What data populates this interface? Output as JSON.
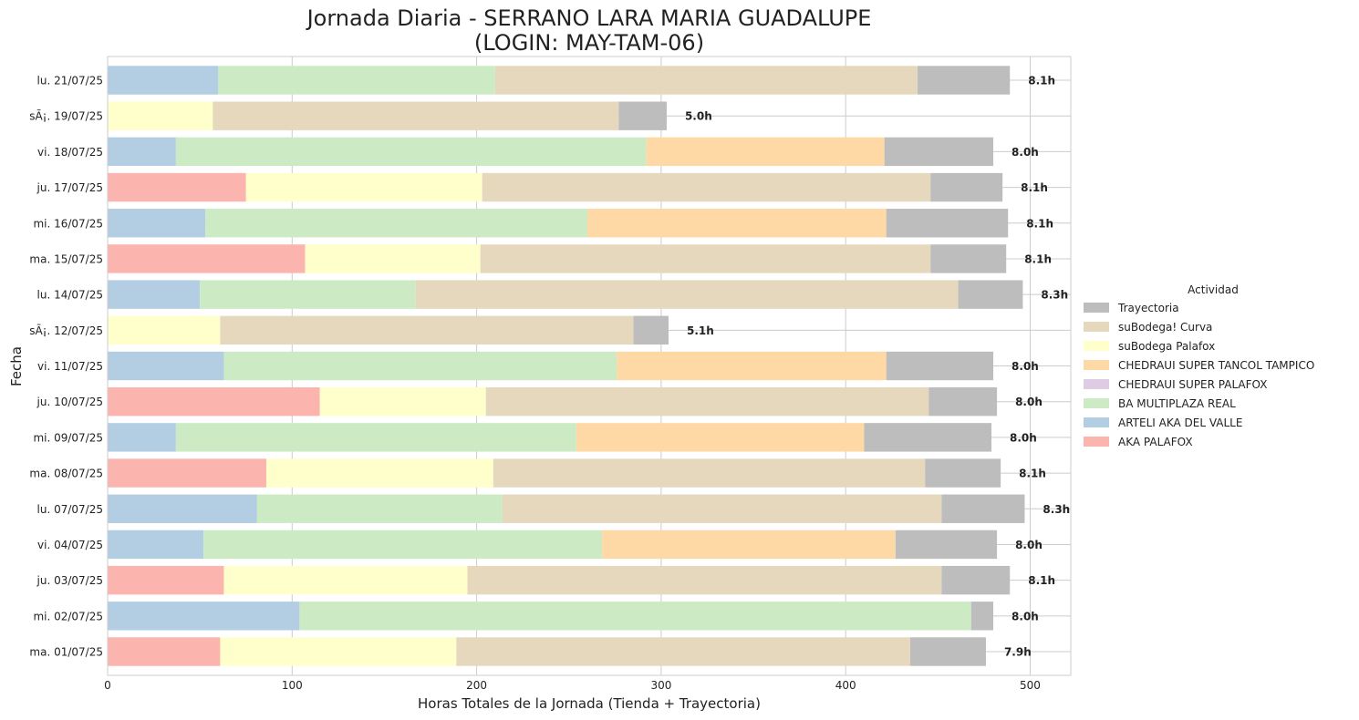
{
  "chart_data": {
    "type": "bar",
    "orientation": "horizontal",
    "stacked": true,
    "title_line1": "Jornada Diaria - SERRANO LARA MARIA GUADALUPE",
    "title_line2": "(LOGIN: MAY-TAM-06)",
    "xlabel": "Horas Totales de la Jornada (Tienda + Trayectoria)",
    "ylabel": "Fecha",
    "xlim": [
      0,
      522
    ],
    "xticks": [
      0,
      100,
      200,
      300,
      400,
      500
    ],
    "grid": true,
    "legend_title": "Actividad",
    "legend_position": "center-right",
    "categories": [
      "lu. 21/07/25",
      "sÃ¡. 19/07/25",
      "vi. 18/07/25",
      "ju. 17/07/25",
      "mi. 16/07/25",
      "ma. 15/07/25",
      "lu. 14/07/25",
      "sÃ¡. 12/07/25",
      "vi. 11/07/25",
      "ju. 10/07/25",
      "mi. 09/07/25",
      "ma. 08/07/25",
      "lu. 07/07/25",
      "vi. 04/07/25",
      "ju. 03/07/25",
      "mi. 02/07/25",
      "ma. 01/07/25"
    ],
    "series": [
      {
        "name": "AKA PALAFOX",
        "color": "#fbb4ae",
        "values": [
          0,
          0,
          0,
          75,
          0,
          107,
          0,
          0,
          0,
          115,
          0,
          86,
          0,
          0,
          63,
          0,
          61
        ]
      },
      {
        "name": "ARTELI AKA DEL VALLE",
        "color": "#b3cde3",
        "values": [
          60,
          0,
          37,
          0,
          53,
          0,
          50,
          0,
          63,
          0,
          37,
          0,
          81,
          52,
          0,
          104,
          0
        ]
      },
      {
        "name": "BA MULTIPLAZA REAL",
        "color": "#ccebc5",
        "values": [
          150,
          0,
          255,
          0,
          207,
          0,
          117,
          0,
          213,
          0,
          217,
          0,
          133,
          216,
          0,
          364,
          0
        ]
      },
      {
        "name": "CHEDRAUI SUPER PALAFOX",
        "color": "#decbe4",
        "values": [
          0,
          0,
          0,
          0,
          0,
          0,
          0,
          0,
          0,
          0,
          0,
          0,
          0,
          0,
          0,
          0,
          0
        ]
      },
      {
        "name": "CHEDRAUI SUPER TANCOL TAMPICO",
        "color": "#fed9a6",
        "values": [
          0,
          0,
          129,
          0,
          162,
          0,
          0,
          0,
          146,
          0,
          156,
          0,
          0,
          159,
          0,
          0,
          0
        ]
      },
      {
        "name": "suBodega Palafox",
        "color": "#ffffcc",
        "values": [
          0,
          57,
          0,
          128,
          0,
          95,
          0,
          61,
          0,
          90,
          0,
          123,
          0,
          0,
          132,
          0,
          128
        ]
      },
      {
        "name": "suBodega! Curva",
        "color": "#e5d8bd",
        "values": [
          229,
          220,
          0,
          243,
          0,
          244,
          294,
          224,
          0,
          240,
          0,
          234,
          238,
          0,
          257,
          0,
          246
        ]
      },
      {
        "name": "Trayectoria",
        "color": "#bdbdbd",
        "values": [
          50,
          26,
          59,
          39,
          66,
          41,
          35,
          19,
          58,
          37,
          69,
          41,
          45,
          55,
          37,
          12,
          41
        ]
      }
    ],
    "legend_order": [
      "Trayectoria",
      "suBodega! Curva",
      "suBodega Palafox",
      "CHEDRAUI SUPER TANCOL TAMPICO",
      "CHEDRAUI SUPER PALAFOX",
      "BA MULTIPLAZA REAL",
      "ARTELI AKA DEL VALLE",
      "AKA PALAFOX"
    ],
    "bar_labels": [
      "8.1h",
      "5.0h",
      "8.0h",
      "8.1h",
      "8.1h",
      "8.1h",
      "8.3h",
      "5.1h",
      "8.0h",
      "8.0h",
      "8.0h",
      "8.1h",
      "8.3h",
      "8.0h",
      "8.1h",
      "8.0h",
      "7.9h"
    ]
  }
}
